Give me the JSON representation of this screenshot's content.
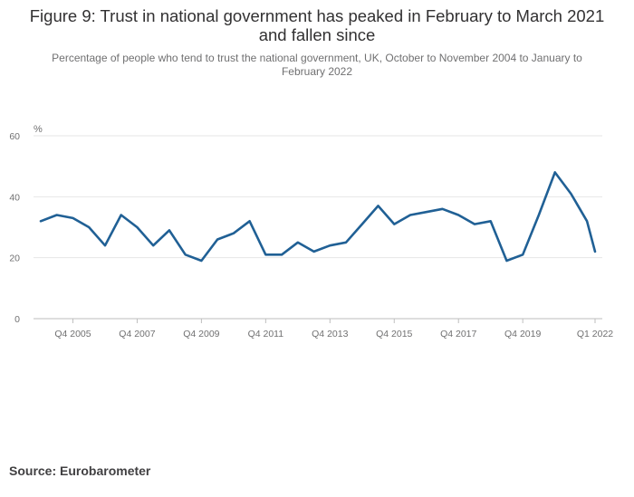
{
  "chart_data": {
    "type": "line",
    "title": "Figure 9: Trust in national government has peaked in February to March 2021 and fallen since",
    "subtitle": "Percentage of people who tend to trust the national government, UK, October to November 2004 to January to February 2022",
    "ylabel": "%",
    "ylim": [
      0,
      60
    ],
    "yticks": [
      "0",
      "20",
      "40",
      "60"
    ],
    "xticks": [
      "Q4 2005",
      "Q4 2007",
      "Q4 2009",
      "Q4 2011",
      "Q4 2013",
      "Q4 2015",
      "Q4 2017",
      "Q4 2019",
      "Q1 2022"
    ],
    "grid": true,
    "line_color": "#206095",
    "series": [
      {
        "x": [
          2004.75,
          2005.25,
          2005.75,
          2006.25,
          2006.75,
          2007.25,
          2007.75,
          2008.25,
          2008.75,
          2009.25,
          2009.75,
          2010.25,
          2010.75,
          2011.25,
          2011.75,
          2012.25,
          2012.75,
          2013.25,
          2013.75,
          2014.25,
          2014.75,
          2015.25,
          2015.75,
          2016.25,
          2016.75,
          2017.25,
          2017.75,
          2018.25,
          2018.75,
          2019.25,
          2019.75,
          2020.25,
          2020.75,
          2021.25,
          2021.75,
          2022.0
        ],
        "values": [
          32,
          34,
          33,
          30,
          24,
          34,
          30,
          24,
          29,
          21,
          19,
          26,
          28,
          32,
          21,
          21,
          25,
          22,
          24,
          25,
          31,
          37,
          31,
          34,
          35,
          36,
          34,
          31,
          32,
          19,
          21,
          34,
          48,
          41,
          32,
          22
        ]
      }
    ]
  },
  "source": "Source: Eurobarometer"
}
